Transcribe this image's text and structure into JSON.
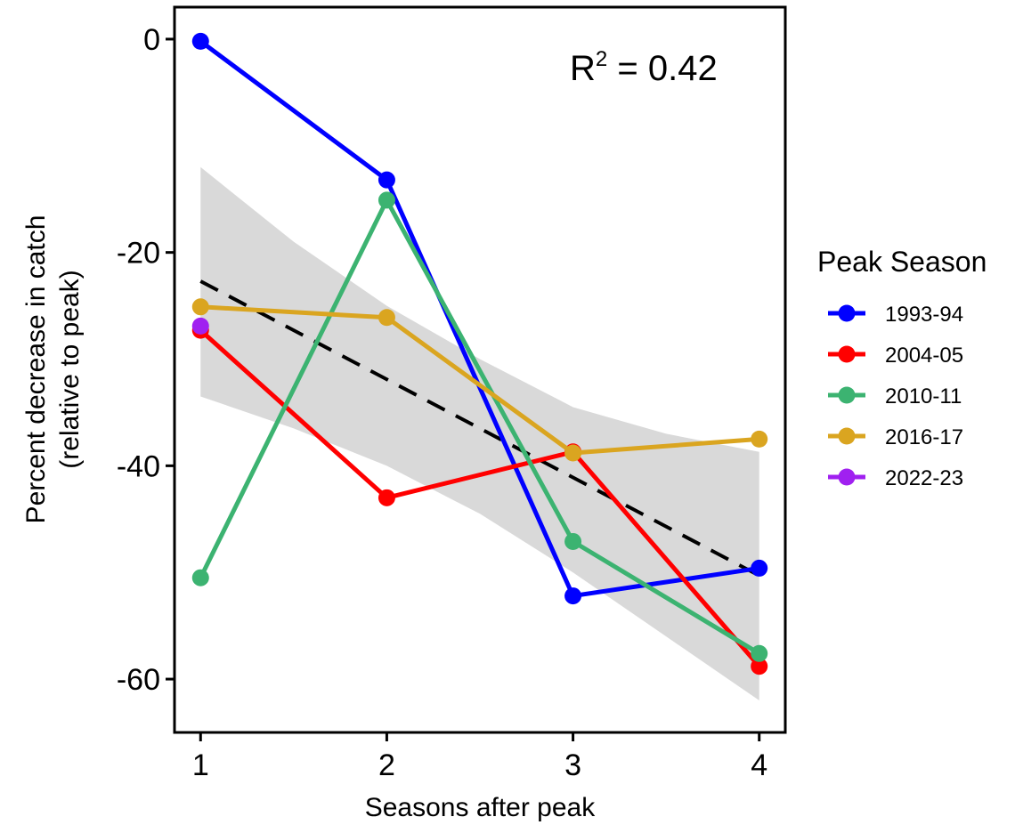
{
  "chart_data": {
    "type": "line",
    "xlabel": "Seasons after peak",
    "ylabel_line1": "Percent decrease in catch",
    "ylabel_line2": "(relative to peak)",
    "x_ticks": [
      1,
      2,
      3,
      4
    ],
    "y_ticks": [
      0,
      -20,
      -40,
      -60
    ],
    "x_tick_labels": [
      "1",
      "2",
      "3",
      "4"
    ],
    "y_tick_labels": [
      "0",
      "-20",
      "-40",
      "-60"
    ],
    "xlim": [
      0.86,
      4.14
    ],
    "ylim": [
      -65,
      3
    ],
    "grid": false,
    "legend_title": "Peak Season",
    "legend_position": "right",
    "annotation": {
      "base": "R",
      "sup": "2",
      "rest": " = 0.42"
    },
    "series": [
      {
        "name": "1993-94",
        "color": "#0000ff",
        "x": [
          1,
          2,
          3,
          4
        ],
        "y": [
          -0.2,
          -13.2,
          -52.2,
          -49.6
        ]
      },
      {
        "name": "2004-05",
        "color": "#ff0000",
        "x": [
          1,
          2,
          3,
          4
        ],
        "y": [
          -27.3,
          -43.0,
          -38.7,
          -58.8
        ]
      },
      {
        "name": "2010-11",
        "color": "#3cb371",
        "x": [
          1,
          2,
          3,
          4
        ],
        "y": [
          -50.5,
          -15.1,
          -47.1,
          -57.6
        ]
      },
      {
        "name": "2016-17",
        "color": "#daa520",
        "x": [
          1,
          2,
          3,
          4
        ],
        "y": [
          -25.1,
          -26.1,
          -38.8,
          -37.5
        ]
      },
      {
        "name": "2022-23",
        "color": "#a020f0",
        "x": [
          1
        ],
        "y": [
          -26.9
        ]
      }
    ],
    "trend_line": {
      "x": [
        1,
        4
      ],
      "y": [
        -22.7,
        -50.3
      ],
      "style": "dashed",
      "color": "#000000"
    },
    "confidence_band": {
      "x": [
        1,
        1.5,
        2,
        2.5,
        3,
        3.5,
        4
      ],
      "upper": [
        -12.0,
        -19.0,
        -25.0,
        -30.0,
        -34.5,
        -37.0,
        -38.7
      ],
      "lower": [
        -33.5,
        -36.5,
        -40.0,
        -44.5,
        -50.0,
        -56.0,
        -62.0
      ],
      "color": "#d9d9d9"
    }
  }
}
